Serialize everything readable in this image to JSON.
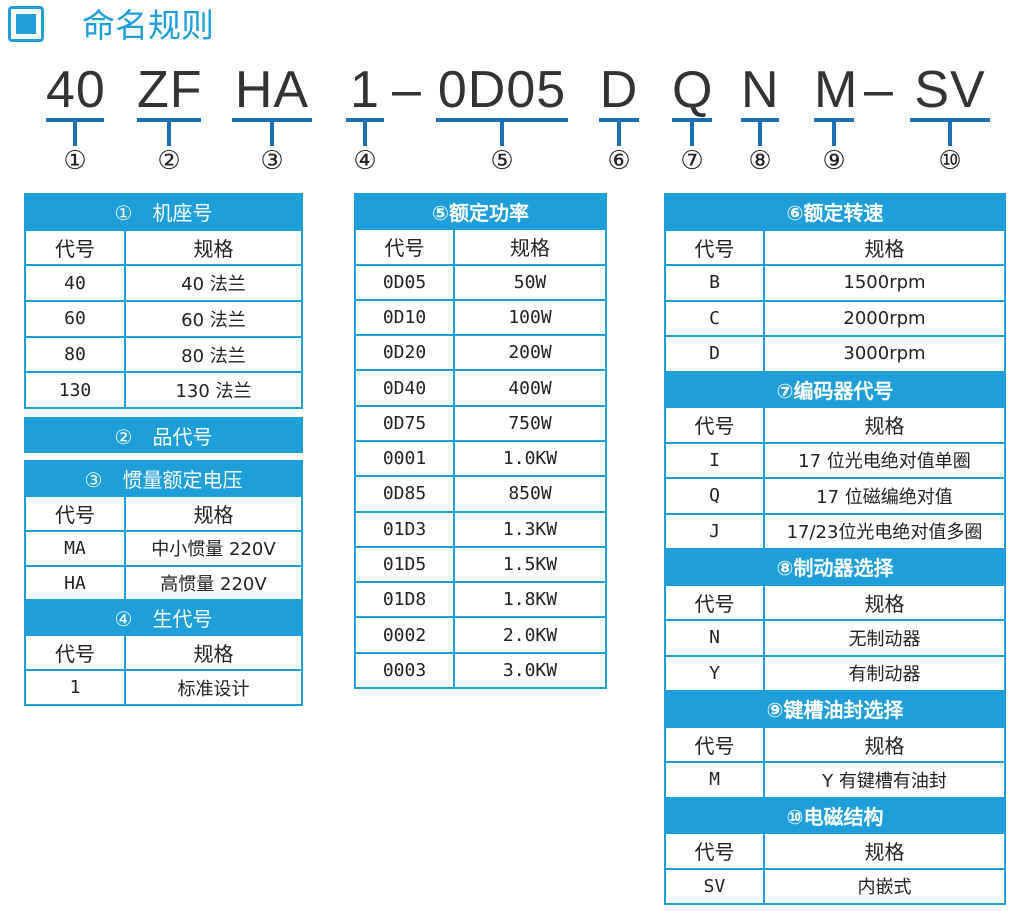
{
  "page": {
    "title": "命名规则",
    "logo_icon": "servo-drive-logo-icon",
    "accent_color": "#1e9fd9",
    "line_color": "#1a6fb5"
  },
  "code": {
    "segments": [
      {
        "text": "40",
        "num": "①"
      },
      {
        "text": "ZF",
        "num": "②"
      },
      {
        "text": "HA",
        "num": "③"
      },
      {
        "text": "1",
        "num": "④"
      },
      {
        "text": "0D05",
        "num": "⑤"
      },
      {
        "text": "D",
        "num": "⑥"
      },
      {
        "text": "Q",
        "num": "⑦"
      },
      {
        "text": "N",
        "num": "⑧"
      },
      {
        "text": "M",
        "num": "⑨"
      },
      {
        "text": "SV",
        "num": "⑩"
      }
    ],
    "dash": "–"
  },
  "tables": [
    [
      {
        "sections": [
          {
            "title": "①　机座号",
            "light": true,
            "header": [
              "代号",
              "规格"
            ],
            "rows": [
              [
                "40",
                "40 法兰"
              ],
              [
                "60",
                "60 法兰"
              ],
              [
                "80",
                "80 法兰"
              ],
              [
                "130",
                "130 法兰"
              ]
            ]
          }
        ]
      },
      {
        "sections": [
          {
            "title": "②　品代号",
            "light": true
          }
        ]
      },
      {
        "sections": [
          {
            "title": "③　惯量额定电压",
            "light": true,
            "header": [
              "代号",
              "规格"
            ],
            "rows": [
              [
                "MA",
                "中小惯量 220V"
              ],
              [
                "HA",
                "高惯量 220V"
              ]
            ]
          },
          {
            "title": "④　生代号",
            "light": true,
            "header": [
              "代号",
              "规格"
            ],
            "rows": [
              [
                "1",
                "标准设计"
              ]
            ]
          }
        ]
      }
    ],
    [
      {
        "sections": [
          {
            "title": "⑤额定功率",
            "header": [
              "代号",
              "规格"
            ],
            "rows": [
              [
                "0D05",
                "50W"
              ],
              [
                "0D10",
                "100W"
              ],
              [
                "0D20",
                "200W"
              ],
              [
                "0D40",
                "400W"
              ],
              [
                "0D75",
                "750W"
              ],
              [
                "0001",
                "1.0KW"
              ],
              [
                "0D85",
                "850W"
              ],
              [
                "01D3",
                "1.3KW"
              ],
              [
                "01D5",
                "1.5KW"
              ],
              [
                "01D8",
                "1.8KW"
              ],
              [
                "0002",
                "2.0KW"
              ],
              [
                "0003",
                "3.0KW"
              ]
            ]
          }
        ]
      }
    ],
    [
      {
        "sections": [
          {
            "title": "⑥额定转速",
            "header": [
              "代号",
              "规格"
            ],
            "rows": [
              [
                "B",
                "1500rpm"
              ],
              [
                "C",
                "2000rpm"
              ],
              [
                "D",
                "3000rpm"
              ]
            ]
          },
          {
            "title": "⑦编码器代号",
            "header": [
              "代号",
              "规格"
            ],
            "rows": [
              [
                "I",
                "17 位光电绝对值单圈"
              ],
              [
                "Q",
                "17 位磁编绝对值"
              ],
              [
                "J",
                "17/23位光电绝对值多圈"
              ]
            ]
          },
          {
            "title": "⑧制动器选择",
            "header": [
              "代号",
              "规格"
            ],
            "rows": [
              [
                "N",
                "无制动器"
              ],
              [
                "Y",
                "有制动器"
              ]
            ]
          },
          {
            "title": "⑨键槽油封选择",
            "header": [
              "代号",
              "规格"
            ],
            "rows": [
              [
                "M",
                "Y 有键槽有油封"
              ]
            ]
          },
          {
            "title": "⑩电磁结构",
            "header": [
              "代号",
              "规格"
            ],
            "rows": [
              [
                "SV",
                "内嵌式"
              ]
            ]
          }
        ]
      }
    ]
  ]
}
